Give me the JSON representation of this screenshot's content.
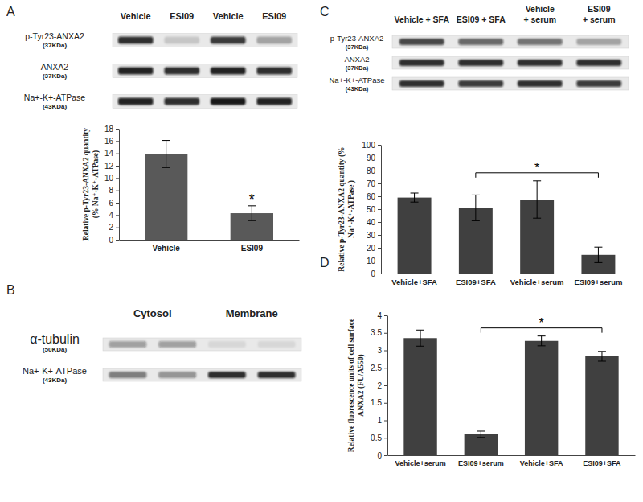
{
  "panels": [
    "A",
    "B",
    "C",
    "D"
  ],
  "chart_data": [
    {
      "type": "bar",
      "categories": [
        "Vehicle",
        "ESI09"
      ],
      "values": [
        13.9,
        4.3
      ],
      "errors": [
        2.2,
        1.2
      ],
      "color": "#595959",
      "ylabel": "Relative p-Tyr23-ANXA2 quantity (% Na⁺-K⁺-ATPase)",
      "ylim": [
        0,
        18
      ],
      "yticks": [
        0,
        2,
        4,
        6,
        8,
        10,
        12,
        14,
        16,
        18
      ],
      "grid": false,
      "annotations": [
        {
          "text": "*",
          "categories": [
            "ESI09"
          ]
        }
      ]
    },
    {
      "type": "bar",
      "categories": [
        "Vehicle+SFA",
        "ESI09+SFA",
        "Vehicle+serum",
        "ESI09+serum"
      ],
      "values": [
        59,
        51,
        57.5,
        14.5
      ],
      "errors": [
        3.5,
        10,
        14.5,
        6
      ],
      "color": "#404040",
      "ylabel": "Relative p-Tyr23-ANXA2 quantity (% Na⁺-K⁺-ATPase )",
      "ylim": [
        0,
        100
      ],
      "yticks": [
        0,
        10,
        20,
        30,
        40,
        50,
        60,
        70,
        80,
        90,
        100
      ],
      "grid": false,
      "annotations": [
        {
          "text": "*",
          "categories": [
            "ESI09+SFA",
            "ESI09+serum"
          ]
        }
      ]
    },
    {
      "type": "bar",
      "categories": [
        "Vehicle+serum",
        "ESI09+serum",
        "Vehicle+SFA",
        "ESI09+SFA"
      ],
      "values": [
        3.35,
        0.6,
        3.27,
        2.83
      ],
      "errors": [
        0.23,
        0.09,
        0.14,
        0.14
      ],
      "color": "#404040",
      "ylabel": "Relative fluorescence units of cell surface ANXA2 (FU/A550)",
      "ylim": [
        0,
        4
      ],
      "yticks": [
        0,
        0.5,
        1,
        1.5,
        2,
        2.5,
        3,
        3.5,
        4
      ],
      "grid": false,
      "annotations": [
        {
          "text": "*",
          "categories": [
            "ESI09+serum",
            "ESI09+SFA"
          ]
        }
      ]
    }
  ],
  "blots": [
    {
      "panel": "A",
      "headers": [
        "Vehicle",
        "ESI09",
        "Vehicle",
        "ESI09"
      ],
      "rows": [
        {
          "label": "p-Tyr23-ANXA2",
          "mw": "(37KDa)",
          "bands": [
            0.85,
            0.15,
            0.8,
            0.3
          ]
        },
        {
          "label": "ANXA2",
          "mw": "(37KDa)",
          "bands": [
            0.9,
            0.85,
            0.9,
            0.85
          ]
        },
        {
          "label": "Na+-K+-ATPase",
          "mw": "(43KDa)",
          "bands": [
            0.9,
            0.85,
            0.95,
            0.9
          ]
        }
      ]
    },
    {
      "panel": "B",
      "headers": [
        "Cytosol",
        "Membrane"
      ],
      "rows": [
        {
          "label": "α-tubulin",
          "mw": "(50KDa)",
          "bands": [
            0.35,
            0.35,
            0.08,
            0.08
          ]
        },
        {
          "label": "Na+-K+-ATPase",
          "mw": "(43KDa)",
          "bands": [
            0.5,
            0.4,
            0.85,
            0.85
          ]
        }
      ]
    },
    {
      "panel": "C",
      "headers": [
        "Vehicle + SFA",
        "ESI09 + SFA",
        "Vehicle + serum",
        "ESI09 + serum"
      ],
      "rows": [
        {
          "label": "p-Tyr23-ANXA2",
          "mw": "(37KDa)",
          "bands": [
            0.75,
            0.6,
            0.55,
            0.3
          ]
        },
        {
          "label": "ANXA2",
          "mw": "(37KDa)",
          "bands": [
            0.85,
            0.85,
            0.85,
            0.85
          ]
        },
        {
          "label": "Na+-K+-ATPase",
          "mw": "(43KDa)",
          "bands": [
            0.85,
            0.8,
            0.85,
            0.8
          ]
        }
      ]
    }
  ]
}
